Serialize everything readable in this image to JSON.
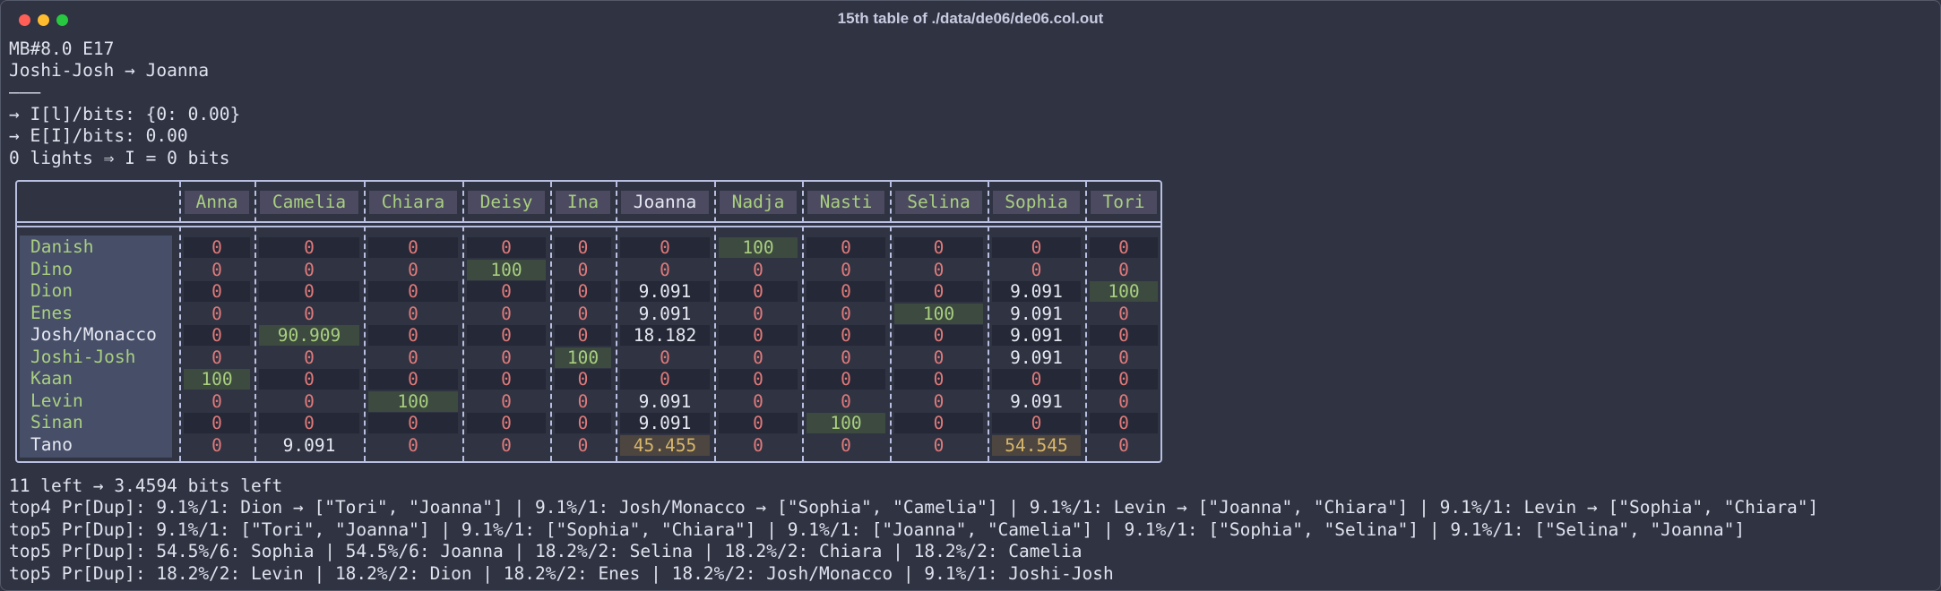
{
  "window": {
    "title": "15th table of ./data/de06/de06.col.out"
  },
  "console_top": [
    "MB#8.0 E17",
    "Joshi-Josh → Joanna",
    "———",
    "→ I[l]/bits: {0: 0.00}",
    "→ E[I]/bits: 0.00",
    "0 lights ⇒ I = 0 bits"
  ],
  "table": {
    "columns": [
      "Anna",
      "Camelia",
      "Chiara",
      "Deisy",
      "Ina",
      "Joanna",
      "Nadja",
      "Nasti",
      "Selina",
      "Sophia",
      "Tori"
    ],
    "highlighted_column": "Joanna",
    "rows": [
      {
        "name": "Danish",
        "cells": [
          "0",
          "0",
          "0",
          "0",
          "0",
          "0",
          "100",
          "0",
          "0",
          "0",
          "0"
        ]
      },
      {
        "name": "Dino",
        "cells": [
          "0",
          "0",
          "0",
          "100",
          "0",
          "0",
          "0",
          "0",
          "0",
          "0",
          "0"
        ]
      },
      {
        "name": "Dion",
        "cells": [
          "0",
          "0",
          "0",
          "0",
          "0",
          "9.091",
          "0",
          "0",
          "0",
          "9.091",
          "100"
        ]
      },
      {
        "name": "Enes",
        "cells": [
          "0",
          "0",
          "0",
          "0",
          "0",
          "9.091",
          "0",
          "0",
          "100",
          "9.091",
          "0"
        ]
      },
      {
        "name": "Josh/Monacco",
        "cells": [
          "0",
          "90.909",
          "0",
          "0",
          "0",
          "18.182",
          "0",
          "0",
          "0",
          "9.091",
          "0"
        ]
      },
      {
        "name": "Joshi-Josh",
        "cells": [
          "0",
          "0",
          "0",
          "0",
          "100",
          "0",
          "0",
          "0",
          "0",
          "9.091",
          "0"
        ]
      },
      {
        "name": "Kaan",
        "cells": [
          "100",
          "0",
          "0",
          "0",
          "0",
          "0",
          "0",
          "0",
          "0",
          "0",
          "0"
        ]
      },
      {
        "name": "Levin",
        "cells": [
          "0",
          "0",
          "100",
          "0",
          "0",
          "9.091",
          "0",
          "0",
          "0",
          "9.091",
          "0"
        ]
      },
      {
        "name": "Sinan",
        "cells": [
          "0",
          "0",
          "0",
          "0",
          "0",
          "9.091",
          "0",
          "100",
          "0",
          "0",
          "0"
        ]
      },
      {
        "name": "Tano",
        "cells": [
          "0",
          "9.091",
          "0",
          "0",
          "0",
          "45.455",
          "0",
          "0",
          "0",
          "54.545",
          "0"
        ]
      }
    ],
    "white_rows": [
      "Josh/Monacco",
      "Tano"
    ]
  },
  "console_bottom": [
    "11 left → 3.4594 bits left",
    "top4 Pr[Dup]: 9.1%/1: Dion → [\"Tori\", \"Joanna\"] | 9.1%/1: Josh/Monacco → [\"Sophia\", \"Camelia\"] | 9.1%/1: Levin → [\"Joanna\", \"Chiara\"] | 9.1%/1: Levin → [\"Sophia\", \"Chiara\"]",
    "top5 Pr[Dup]: 9.1%/1: [\"Tori\", \"Joanna\"] | 9.1%/1: [\"Sophia\", \"Chiara\"] | 9.1%/1: [\"Joanna\", \"Camelia\"] | 9.1%/1: [\"Sophia\", \"Selina\"] | 9.1%/1: [\"Selina\", \"Joanna\"]",
    "top5 Pr[Dup]: 54.5%/6: Sophia | 54.5%/6: Joanna | 18.2%/2: Selina | 18.2%/2: Chiara | 18.2%/2: Camelia",
    "top5 Pr[Dup]: 18.2%/2: Levin | 18.2%/2: Dion | 18.2%/2: Enes | 18.2%/2: Josh/Monacco | 9.1%/1: Joshi-Josh"
  ],
  "colors": {
    "background": "#2f3342",
    "green_text": "#a9cf7f",
    "zero_red": "#e07a7a",
    "yellow_text": "#d8b76a",
    "highlight_bg": "#3c4a40",
    "border": "#b8bfe0"
  }
}
